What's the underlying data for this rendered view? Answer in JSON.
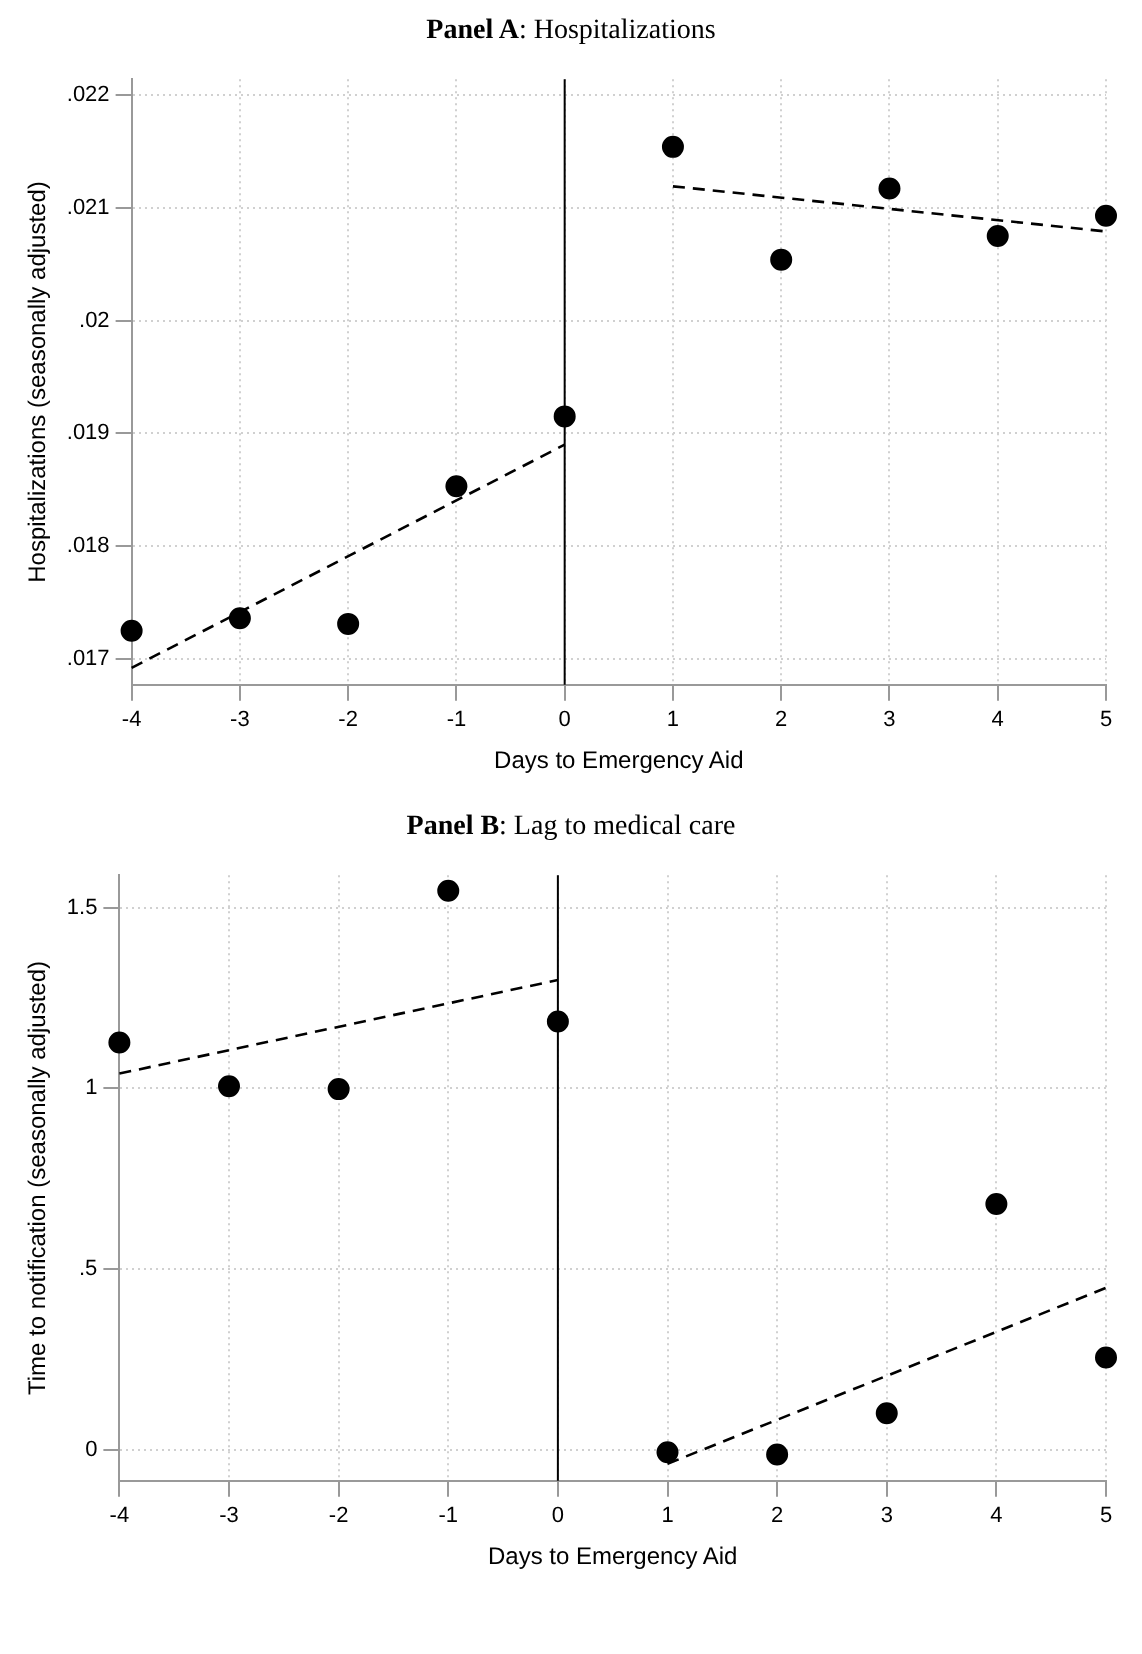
{
  "chart_data": [
    {
      "type": "scatter",
      "title": "Panel A: Hospitalizations",
      "xlabel": "Days to Emergency Aid",
      "ylabel": "Hospitalizations (seasonally adjusted)",
      "x": [
        -4,
        -3,
        -2,
        -1,
        0,
        1,
        2,
        3,
        4,
        5
      ],
      "xlim": [
        -4,
        5
      ],
      "xticks": [
        -4,
        -3,
        -2,
        -1,
        0,
        1,
        2,
        3,
        4,
        5
      ],
      "ylim": [
        0.01677,
        0.02214
      ],
      "yticks": [
        {
          "value": 0.017,
          "label": ".017"
        },
        {
          "value": 0.018,
          "label": ".018"
        },
        {
          "value": 0.019,
          "label": ".019"
        },
        {
          "value": 0.02,
          "label": ".02"
        },
        {
          "value": 0.021,
          "label": ".021"
        },
        {
          "value": 0.022,
          "label": ".022"
        }
      ],
      "grid": true,
      "marker": "circle",
      "ref_lines": [
        {
          "axis": "x",
          "value": 0,
          "color": "#000000"
        }
      ],
      "series": [
        {
          "type": "scatter",
          "color": "#000000",
          "values": [
            0.01725,
            0.01736,
            0.01731,
            0.01853,
            0.01915,
            0.02154,
            0.02054,
            0.02117,
            0.02075,
            0.02093
          ]
        },
        {
          "type": "line",
          "color": "#000000",
          "line_style": "dashed",
          "marker": "none",
          "x": [
            -4,
            0
          ],
          "values": [
            0.01692,
            0.0189
          ]
        },
        {
          "type": "line",
          "color": "#000000",
          "line_style": "dashed",
          "marker": "none",
          "x": [
            1,
            5
          ],
          "values": [
            0.02119,
            0.02079
          ]
        }
      ]
    },
    {
      "type": "scatter",
      "title": "Panel B: Lag to medical care",
      "xlabel": "Days to Emergency Aid",
      "ylabel": "Time to notification (seasonally adjusted)",
      "x": [
        -4,
        -3,
        -2,
        -1,
        0,
        1,
        2,
        3,
        4,
        5
      ],
      "xlim": [
        -4,
        5
      ],
      "xticks": [
        -4,
        -3,
        -2,
        -1,
        0,
        1,
        2,
        3,
        4,
        5
      ],
      "ylim": [
        -0.086,
        1.59
      ],
      "yticks": [
        0,
        {
          "value": 0.5,
          "label": ".5"
        },
        1,
        1.5
      ],
      "grid": true,
      "marker": "circle",
      "ref_lines": [
        {
          "axis": "x",
          "value": 0,
          "color": "#000000"
        }
      ],
      "series": [
        {
          "type": "scatter",
          "color": "#000000",
          "values": [
            1.127,
            1.006,
            0.998,
            1.547,
            1.185,
            -0.007,
            -0.013,
            0.101,
            0.68,
            0.255
          ]
        },
        {
          "type": "line",
          "color": "#000000",
          "line_style": "dashed",
          "marker": "none",
          "x": [
            -4,
            0
          ],
          "values": [
            1.041,
            1.3
          ]
        },
        {
          "type": "line",
          "color": "#000000",
          "line_style": "dashed",
          "marker": "none",
          "x": [
            1,
            5
          ],
          "values": [
            -0.039,
            0.448
          ]
        }
      ]
    }
  ]
}
